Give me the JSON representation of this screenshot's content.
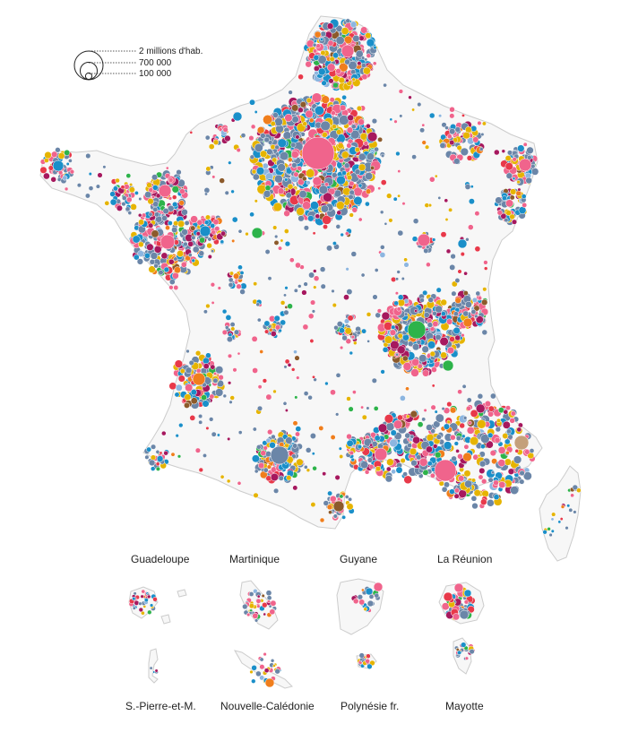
{
  "legend": {
    "items": [
      {
        "label": "2 millions d'hab.",
        "population": 2000000
      },
      {
        "label": "700 000",
        "population": 700000
      },
      {
        "label": "100 000",
        "population": 100000
      }
    ]
  },
  "palette": [
    "#f0648c",
    "#1a8fc9",
    "#6b86a8",
    "#e6b400",
    "#a6185e",
    "#e8394a",
    "#2db34a",
    "#f07e1c",
    "#8c5a2b",
    "#c4a07a",
    "#8db6e0"
  ],
  "colors": {
    "land_fill": "#f7f7f7",
    "land_stroke": "#cccccc",
    "bubble_stroke": "#ffffff"
  },
  "territories": [
    {
      "key": "guadeloupe",
      "label": "Guadeloupe"
    },
    {
      "key": "martinique",
      "label": "Martinique"
    },
    {
      "key": "guyane",
      "label": "Guyane"
    },
    {
      "key": "reunion",
      "label": "La Réunion"
    },
    {
      "key": "spm",
      "label": "S.-Pierre-et-M."
    },
    {
      "key": "ncaledonie",
      "label": "Nouvelle-Calédonie"
    },
    {
      "key": "polynesie",
      "label": "Polynésie fr."
    },
    {
      "key": "mayotte",
      "label": "Mayotte"
    }
  ]
}
